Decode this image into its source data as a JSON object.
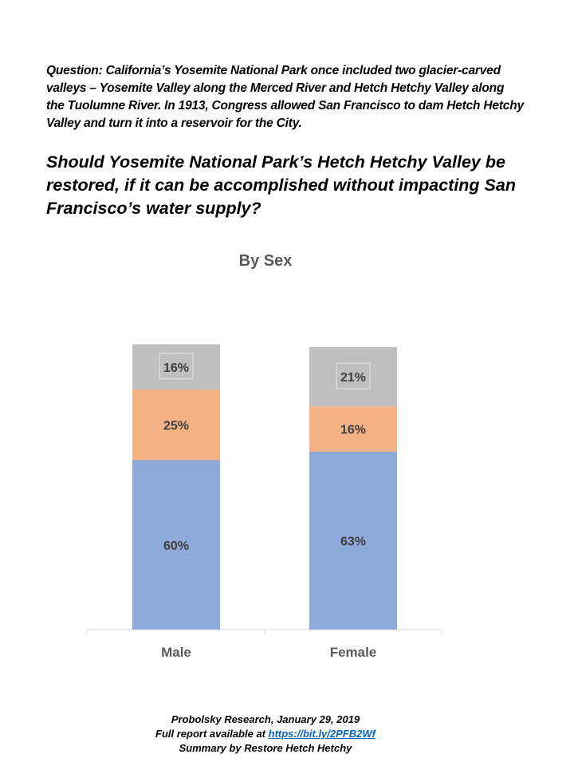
{
  "question_context": "Question: California’s Yosemite National Park once included two glacier-carved valleys – Yosemite Valley along the Merced River and Hetch Hetchy Valley along the Tuolumne River. In 1913, Congress allowed San Francisco to dam Hetch Hetchy Valley and turn it into a reservoir for the City.",
  "main_question": "Should Yosemite National Park’s Hetch Hetchy Valley be restored, if it can be accomplished without impacting San Francisco’s water supply?",
  "chart_data": {
    "type": "bar",
    "stacked": true,
    "title": "By Sex",
    "categories": [
      "Male",
      "Female"
    ],
    "series": [
      {
        "name": "Bottom segment",
        "color": "#8eaadb",
        "values": [
          60,
          63
        ],
        "labels": [
          "60%",
          "63%"
        ]
      },
      {
        "name": "Middle segment",
        "color": "#f4b183",
        "values": [
          25,
          16
        ],
        "labels": [
          "25%",
          "16%"
        ]
      },
      {
        "name": "Top segment",
        "color": "#bfbfbf",
        "values": [
          16,
          21
        ],
        "labels": [
          "16%",
          "21%"
        ]
      }
    ],
    "xlabel": "",
    "ylabel": "",
    "ylim": [
      0,
      100
    ],
    "grid": false
  },
  "footer": {
    "source": "Probolsky Research, January 29, 2019",
    "report_prefix": "Full report available at ",
    "report_link": "https://bit.ly/2PFB2Wf",
    "summary": "Summary by Restore Hetch Hetchy"
  }
}
